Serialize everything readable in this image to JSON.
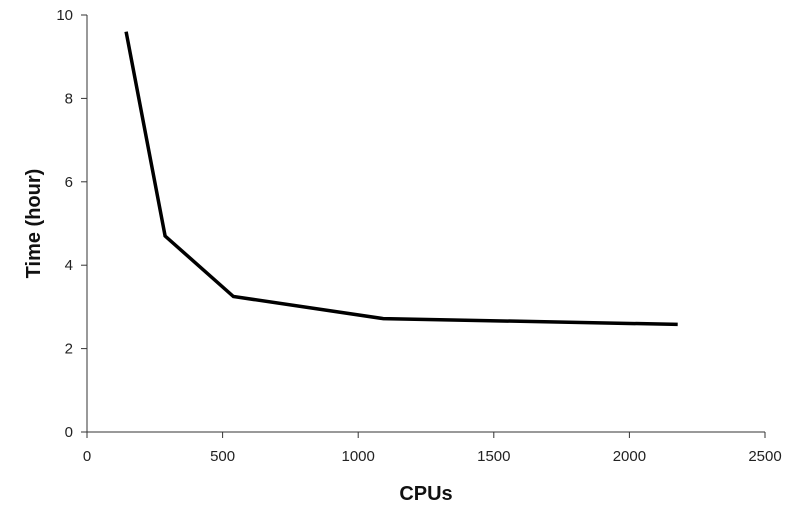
{
  "chart_data": {
    "type": "line",
    "title": "",
    "xlabel": "CPUs",
    "ylabel": "Time (hour)",
    "xlim": [
      0,
      2500
    ],
    "ylim": [
      0,
      10
    ],
    "xticks": [
      0,
      500,
      1000,
      1500,
      2000,
      2500
    ],
    "yticks": [
      0,
      2,
      4,
      6,
      8,
      10
    ],
    "grid": false,
    "legend": "none",
    "series": [
      {
        "color": "#000000",
        "x": [
          144,
          288,
          540,
          1092,
          2178
        ],
        "y": [
          9.6,
          4.7,
          3.25,
          2.72,
          2.58
        ]
      }
    ]
  }
}
